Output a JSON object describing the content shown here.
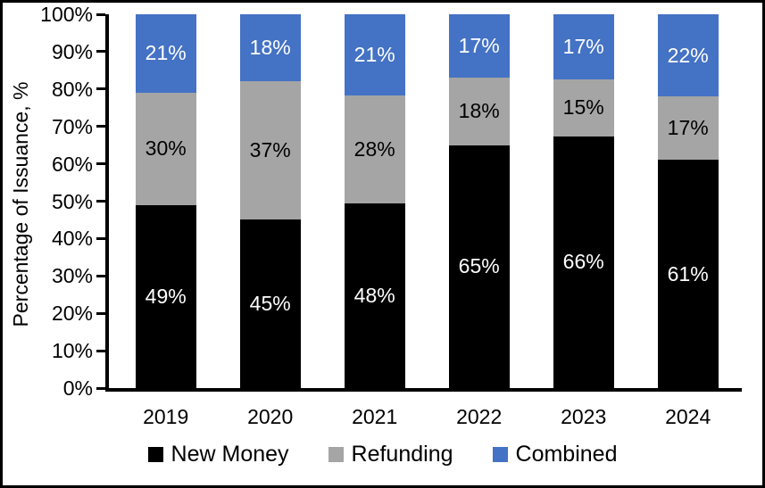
{
  "chart_data": {
    "type": "bar",
    "stacked": true,
    "percent_stacked": true,
    "title": "",
    "xlabel": "",
    "ylabel": "Percentage of Issuance, %",
    "ylim": [
      0,
      100
    ],
    "grid": false,
    "legend_position": "bottom",
    "categories": [
      "2019",
      "2020",
      "2021",
      "2022",
      "2023",
      "2024"
    ],
    "yticks": [
      "0%",
      "10%",
      "20%",
      "30%",
      "40%",
      "50%",
      "60%",
      "70%",
      "80%",
      "90%",
      "100%"
    ],
    "series": [
      {
        "name": "New Money",
        "color": "#000000",
        "label_color": "#ffffff",
        "values": [
          49,
          45,
          48,
          65,
          66,
          61
        ],
        "labels": [
          "49%",
          "45%",
          "48%",
          "65%",
          "66%",
          "61%"
        ]
      },
      {
        "name": "Refunding",
        "color": "#A5A5A5",
        "label_color": "#000000",
        "values": [
          30,
          37,
          28,
          18,
          15,
          17
        ],
        "labels": [
          "30%",
          "37%",
          "28%",
          "18%",
          "15%",
          "17%"
        ]
      },
      {
        "name": "Combined",
        "color": "#4472C4",
        "label_color": "#ffffff",
        "values": [
          21,
          18,
          21,
          17,
          17,
          22
        ],
        "labels": [
          "21%",
          "18%",
          "21%",
          "17%",
          "17%",
          "22%"
        ]
      }
    ],
    "colors": {
      "axis": "#000000",
      "background": "#ffffff",
      "border": "#000000"
    }
  }
}
